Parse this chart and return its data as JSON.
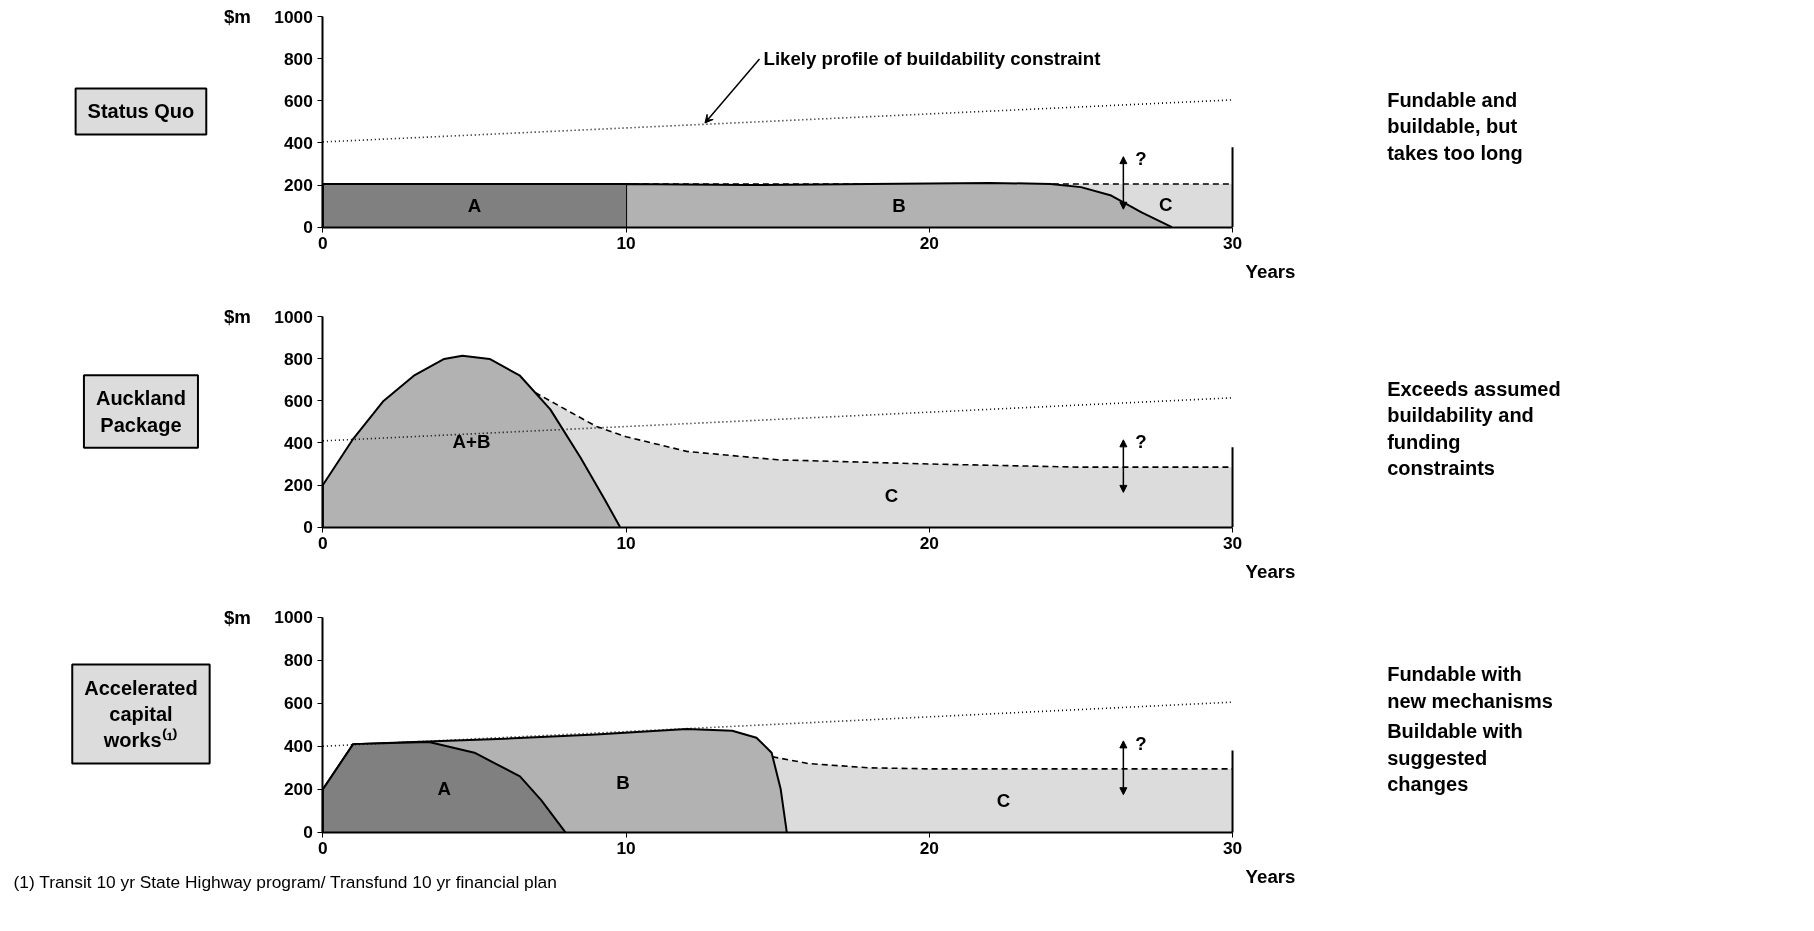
{
  "chart_data": [
    {
      "type": "area",
      "title": "Status Quo",
      "xlabel": "Years",
      "ylabel": "$m",
      "xlim": [
        0,
        30
      ],
      "xticks": [
        0,
        10,
        20,
        30
      ],
      "ylim": [
        0,
        1000
      ],
      "yticks": [
        0,
        200,
        400,
        600,
        800,
        1000
      ],
      "grid": false,
      "series": [
        {
          "name": "C",
          "color": "#dcdcdc",
          "line_style": "dashed",
          "x": [
            0,
            24,
            30
          ],
          "values": [
            205,
            205,
            205
          ]
        },
        {
          "name": "B",
          "color": "#b2b2b2",
          "x": [
            10,
            14,
            18,
            22,
            24,
            25,
            26,
            27,
            28
          ],
          "values": [
            205,
            200,
            205,
            210,
            205,
            190,
            150,
            70,
            0
          ]
        },
        {
          "name": "A",
          "color": "#808080",
          "x": [
            0,
            10
          ],
          "values": [
            205,
            205
          ]
        },
        {
          "type": "line",
          "line_style": "dotted",
          "color": "#000000",
          "x": [
            0,
            30
          ],
          "values": [
            405,
            605
          ]
        }
      ],
      "ref_lines": [
        {
          "axis": "x",
          "value": 30
        }
      ],
      "annotations": [
        {
          "text": "Likely profile of buildability constraint",
          "x": 12.6,
          "y": 480
        },
        "?",
        "Fundable and buildable, but takes too long"
      ]
    },
    {
      "type": "area",
      "title": "Auckland Package",
      "xlabel": "Years",
      "ylabel": "$m",
      "xlim": [
        0,
        30
      ],
      "xticks": [
        0,
        10,
        20,
        30
      ],
      "ylim": [
        0,
        1000
      ],
      "yticks": [
        0,
        200,
        400,
        600,
        800,
        1000
      ],
      "grid": false,
      "series": [
        {
          "name": "C",
          "color": "#dcdcdc",
          "line_style": "dashed",
          "x": [
            7,
            9,
            10,
            12,
            15,
            20,
            25,
            30
          ],
          "values": [
            640,
            480,
            430,
            360,
            320,
            300,
            285,
            285
          ]
        },
        {
          "name": "A+B",
          "color": "#b2b2b2",
          "x": [
            0,
            1,
            2,
            3,
            4,
            4.6,
            5.5,
            6.5,
            7.5,
            8.5,
            9.3,
            9.8
          ],
          "values": [
            200,
            420,
            600,
            720,
            800,
            815,
            800,
            720,
            560,
            330,
            130,
            0
          ]
        },
        {
          "type": "line",
          "line_style": "dotted",
          "color": "#000000",
          "x": [
            0,
            30
          ],
          "values": [
            410,
            615
          ]
        }
      ],
      "ref_lines": [
        {
          "axis": "x",
          "value": 30
        }
      ],
      "annotations": [
        "?",
        "Exceeds assumed buildability and funding constraints"
      ]
    },
    {
      "type": "area",
      "title": "Accelerated capital works⁽¹⁾",
      "xlabel": "Years",
      "ylabel": "$m",
      "xlim": [
        0,
        30
      ],
      "xticks": [
        0,
        10,
        20,
        30
      ],
      "ylim": [
        0,
        1000
      ],
      "yticks": [
        0,
        200,
        400,
        600,
        800,
        1000
      ],
      "grid": false,
      "series": [
        {
          "name": "C",
          "color": "#dcdcdc",
          "line_style": "dashed",
          "x": [
            14.5,
            16,
            18,
            20,
            25,
            30
          ],
          "values": [
            360,
            320,
            300,
            295,
            295,
            295
          ]
        },
        {
          "name": "B",
          "color": "#b2b2b2",
          "x": [
            0,
            1,
            3,
            6,
            9,
            12,
            13.5,
            14.3,
            14.8,
            15.1,
            15.3
          ],
          "values": [
            200,
            410,
            420,
            435,
            455,
            480,
            472,
            440,
            370,
            200,
            0
          ]
        },
        {
          "name": "A",
          "color": "#808080",
          "x": [
            0,
            1,
            3.5,
            5,
            6.5,
            7.2,
            8
          ],
          "values": [
            200,
            410,
            420,
            370,
            260,
            150,
            0
          ]
        },
        {
          "type": "line",
          "line_style": "dotted",
          "color": "#000000",
          "x": [
            0,
            30
          ],
          "values": [
            400,
            605
          ]
        }
      ],
      "ref_lines": [
        {
          "axis": "x",
          "value": 30
        }
      ],
      "annotations": [
        "?",
        "Fundable with new mechanisms",
        "Buildable with suggested changes",
        "(1) Transit 10 yr State Highway program/ Transfund 10 yr financial plan"
      ]
    }
  ]
}
